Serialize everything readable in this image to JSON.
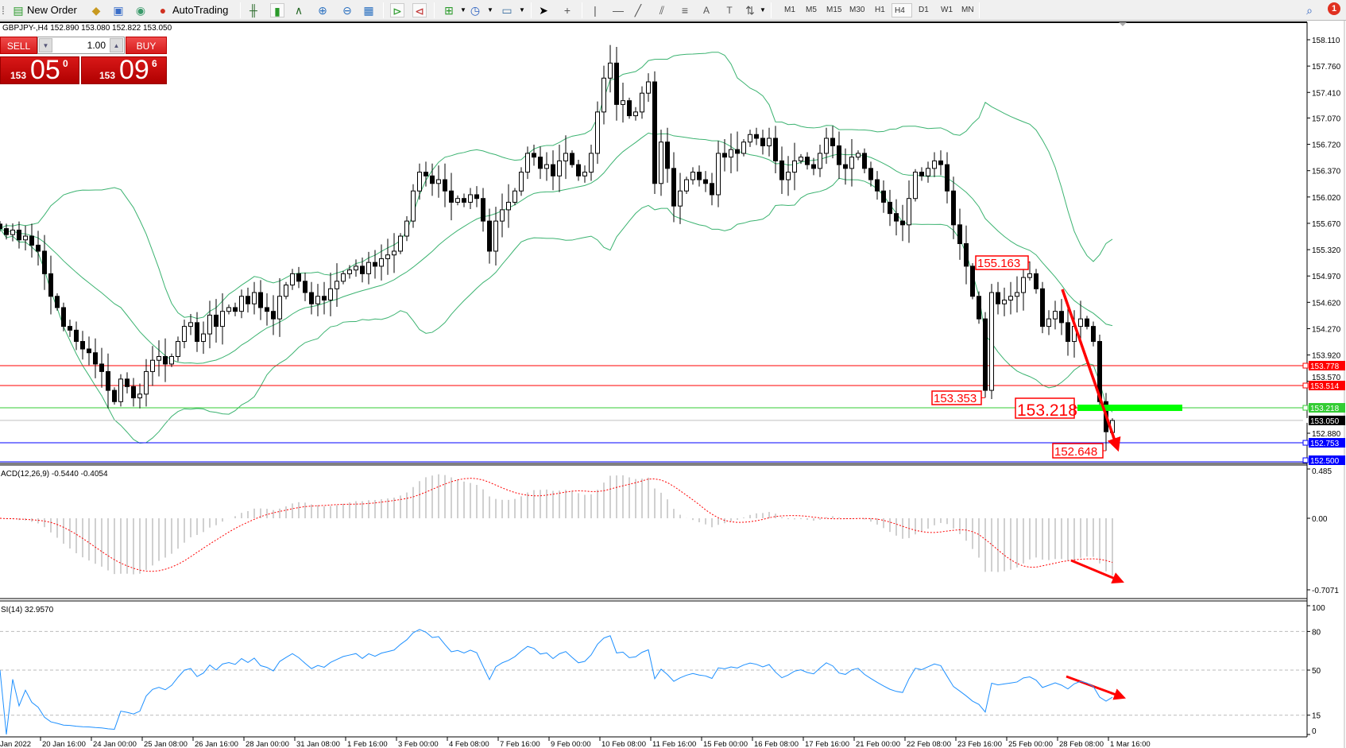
{
  "toolbar": {
    "new_order": "New Order",
    "autotrading": "AutoTrading",
    "timeframes": [
      "M1",
      "M5",
      "M15",
      "M30",
      "H1",
      "H4",
      "D1",
      "W1",
      "MN"
    ],
    "active_timeframe": "H4",
    "notification_count": "1",
    "icons": [
      "new-order-icon",
      "metaeditor-icon",
      "navigator-icon",
      "signals-icon",
      "autotrading-icon",
      "bar-chart-icon",
      "candlestick-icon",
      "line-chart-icon",
      "zoom-in-icon",
      "zoom-out-icon",
      "tile-windows-icon",
      "autoscroll-icon",
      "chart-shift-icon",
      "indicators-icon",
      "periods-icon",
      "templates-icon",
      "cursor-icon",
      "crosshair-icon",
      "vertical-line-icon",
      "horizontal-line-icon",
      "trendline-icon",
      "equidistant-channel-icon",
      "fibonacci-icon",
      "text-icon",
      "text-label-icon",
      "arrows-icon",
      "search-icon",
      "notification-icon"
    ]
  },
  "symbol_info": "GBPJPY-,H4  152.890 153.080 152.822 153.050",
  "trade_panel": {
    "sell_label": "SELL",
    "buy_label": "BUY",
    "lot": "1.00",
    "sell_price": {
      "big": "153",
      "main": "05",
      "pip": "0"
    },
    "buy_price": {
      "big": "153",
      "main": "09",
      "pip": "6"
    }
  },
  "chart_data": [
    {
      "type": "candlestick",
      "symbol": "GBPJPY-",
      "timeframe": "H4",
      "close": [
        155.6,
        155.52,
        155.58,
        155.45,
        155.5,
        155.38,
        155.3,
        155.0,
        154.7,
        154.55,
        154.3,
        154.25,
        154.1,
        154.0,
        153.95,
        153.8,
        153.7,
        153.45,
        153.3,
        153.6,
        153.5,
        153.35,
        153.4,
        153.7,
        153.85,
        153.9,
        153.8,
        153.9,
        154.1,
        154.3,
        154.35,
        154.1,
        154.2,
        154.45,
        154.3,
        154.5,
        154.55,
        154.5,
        154.7,
        154.6,
        154.75,
        154.55,
        154.5,
        154.4,
        154.7,
        154.85,
        155.0,
        154.9,
        154.75,
        154.6,
        154.7,
        154.65,
        154.8,
        154.9,
        155.0,
        155.05,
        155.1,
        155.0,
        155.15,
        155.1,
        155.2,
        155.25,
        155.3,
        155.5,
        155.7,
        156.1,
        156.35,
        156.3,
        156.2,
        156.25,
        156.1,
        155.95,
        156.0,
        155.95,
        156.05,
        156.0,
        155.7,
        155.3,
        155.7,
        155.85,
        155.95,
        156.1,
        156.35,
        156.6,
        156.55,
        156.4,
        156.45,
        156.3,
        156.5,
        156.6,
        156.45,
        156.3,
        156.35,
        156.6,
        157.15,
        157.6,
        157.8,
        157.25,
        157.3,
        157.1,
        157.15,
        157.4,
        157.55,
        156.2,
        156.75,
        156.4,
        155.9,
        156.1,
        156.25,
        156.35,
        156.25,
        156.2,
        156.05,
        156.6,
        156.55,
        156.65,
        156.6,
        156.75,
        156.85,
        156.8,
        156.7,
        156.8,
        156.5,
        156.25,
        156.35,
        156.5,
        156.55,
        156.45,
        156.4,
        156.6,
        156.8,
        156.7,
        156.45,
        156.4,
        156.55,
        156.6,
        156.4,
        156.25,
        156.1,
        155.95,
        155.8,
        155.7,
        155.65,
        156.0,
        156.35,
        156.3,
        156.4,
        156.5,
        156.45,
        156.1,
        155.65,
        155.4,
        155.1,
        154.7,
        154.4,
        153.45,
        154.75,
        154.6,
        154.65,
        154.7,
        154.75,
        154.95,
        155.0,
        154.8,
        154.3,
        154.4,
        154.5,
        154.35,
        154.1,
        154.3,
        154.4,
        154.3,
        154.1,
        153.3,
        152.9,
        153.05
      ],
      "last_bar": {
        "open": 152.89,
        "high": 153.08,
        "low": 152.822,
        "close": 153.05
      },
      "y_ticks": [
        "158.110",
        "157.760",
        "157.410",
        "157.070",
        "156.720",
        "156.370",
        "156.020",
        "155.670",
        "155.320",
        "154.970",
        "154.620",
        "154.270",
        "153.920",
        "153.570",
        "152.880"
      ],
      "x_ticks": [
        "Jan 2022",
        "20 Jan 16:00",
        "24 Jan 00:00",
        "25 Jan 08:00",
        "26 Jan 16:00",
        "28 Jan 00:00",
        "31 Jan 08:00",
        "1 Feb 16:00",
        "3 Feb 00:00",
        "4 Feb 08:00",
        "7 Feb 16:00",
        "9 Feb 00:00",
        "10 Feb 08:00",
        "11 Feb 16:00",
        "15 Feb 00:00",
        "16 Feb 08:00",
        "17 Feb 16:00",
        "21 Feb 00:00",
        "22 Feb 08:00",
        "23 Feb 16:00",
        "25 Feb 00:00",
        "28 Feb 08:00",
        "1 Mar 16:00"
      ],
      "overlay": "Bollinger Bands (green)",
      "levels": [
        {
          "value": 153.778,
          "label": "153.778",
          "color": "#ff0000"
        },
        {
          "value": 153.514,
          "label": "153.514",
          "color": "#ff0000"
        },
        {
          "value": 153.218,
          "label": "153.218",
          "color": "#33cc33"
        },
        {
          "value": 153.05,
          "label": "153.050",
          "color": "#c0c0c0",
          "label_bg": "#000000"
        },
        {
          "value": 152.753,
          "label": "152.753",
          "color": "#0000ff"
        },
        {
          "value": 152.5,
          "label": "152.500",
          "color": "#0000ff"
        }
      ],
      "annotations": [
        "155.163",
        "153.353",
        "153.218",
        "152.648"
      ],
      "highlight_color": "#00ff00",
      "arrow_color": "#ff0000"
    },
    {
      "type": "macd",
      "header": "ACD(12,26,9) -0.5440 -0.4054",
      "y_ticks": [
        "0.485",
        "0.00",
        "-0.7071"
      ],
      "histogram_color": "#c0c0c0",
      "signal_color": "#ff0000"
    },
    {
      "type": "rsi",
      "header": "SI(14) 32.9570",
      "y_ticks": [
        "100",
        "80",
        "50",
        "15",
        "0"
      ],
      "line_color": "#1e90ff"
    }
  ]
}
